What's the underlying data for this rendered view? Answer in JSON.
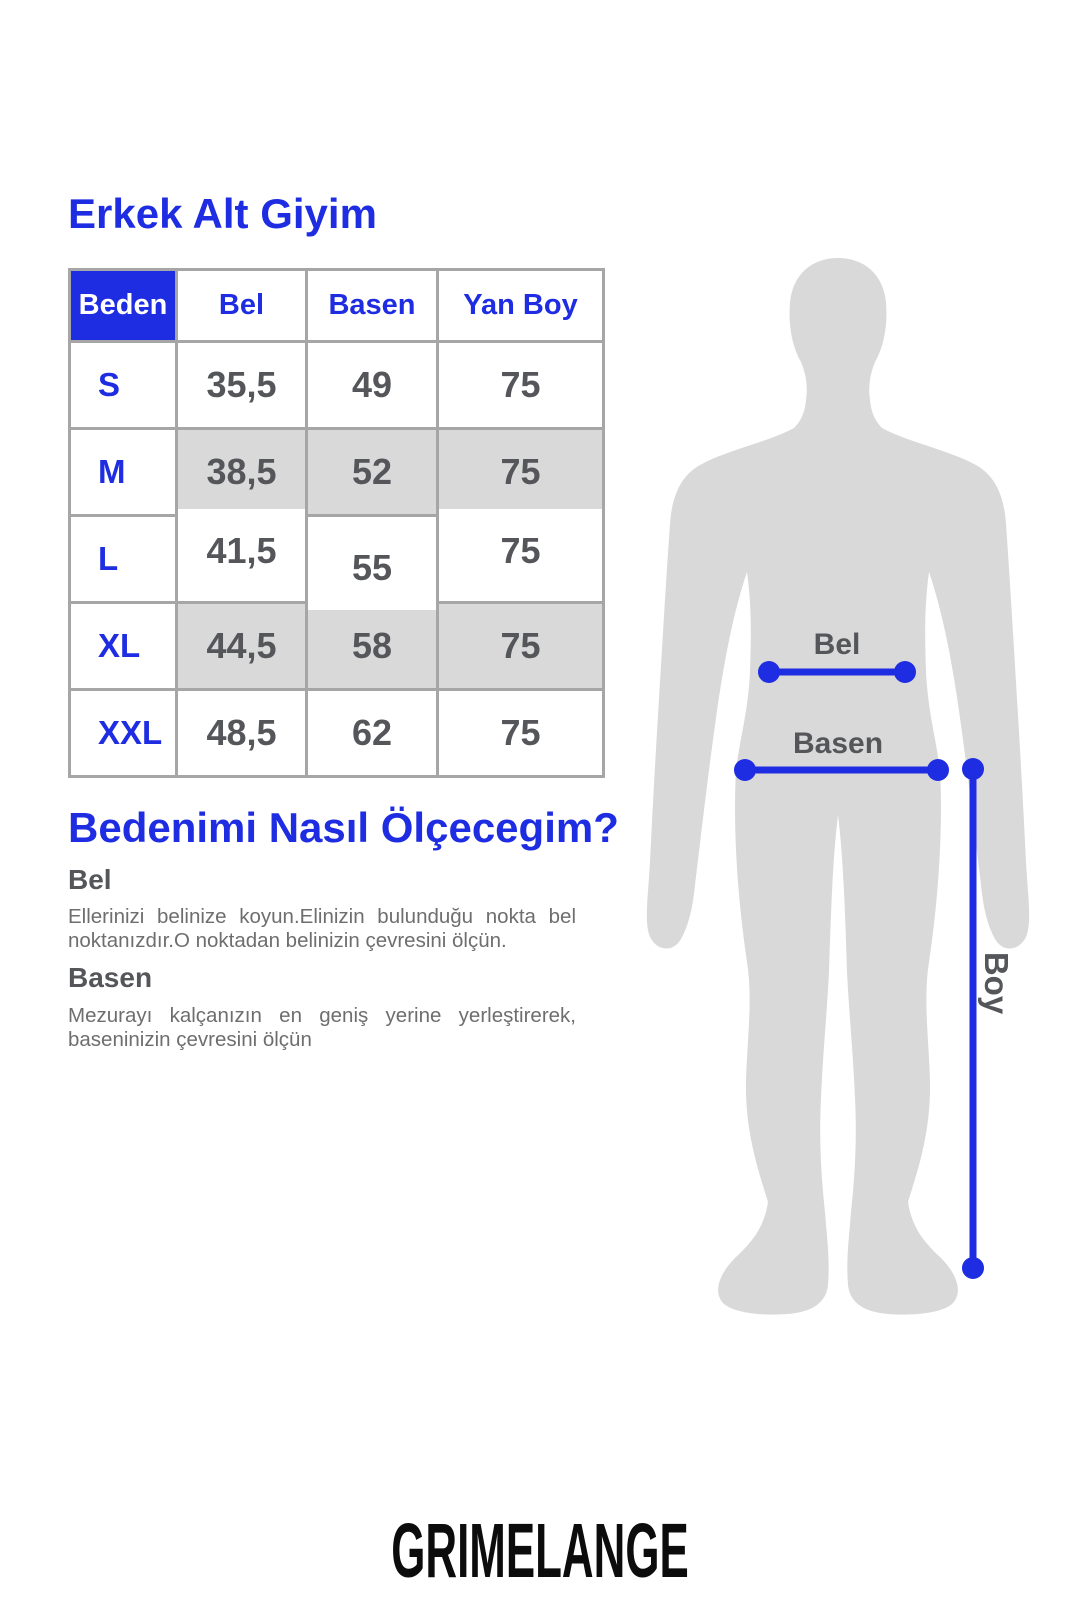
{
  "page": {
    "title": "Erkek Alt Giyim",
    "brand": "GRIMELANGE"
  },
  "size_table": {
    "headers": [
      "Beden",
      "Bel",
      "Basen",
      "Yan Boy"
    ],
    "rows": [
      {
        "size": "S",
        "bel": "35,5",
        "basen": "49",
        "yan_boy": "75"
      },
      {
        "size": "M",
        "bel": "38,5",
        "basen": "52",
        "yan_boy": "75"
      },
      {
        "size": "L",
        "bel": "41,5",
        "basen": "55",
        "yan_boy": "75"
      },
      {
        "size": "XL",
        "bel": "44,5",
        "basen": "58",
        "yan_boy": "75"
      },
      {
        "size": "XXL",
        "bel": "48,5",
        "basen": "62",
        "yan_boy": "75"
      }
    ]
  },
  "measure_guide": {
    "heading": "Bedenimi Nasıl Ölçecegim?",
    "sections": [
      {
        "label": "Bel",
        "text": "Ellerinizi belinize koyun.Elinizin bulunduğu nokta bel noktanızdır.O noktadan belinizin çevresini ölçün."
      },
      {
        "label": "Basen",
        "text": "Mezurayı kalçanızın en geniş yerine yerleştirerek, baseninizin çevresini ölçün"
      }
    ]
  },
  "figure": {
    "labels": {
      "bel": "Bel",
      "basen": "Basen",
      "boy": "Boy"
    }
  },
  "colors": {
    "accent_blue": "#1e2ce2",
    "table_text_dark": "#55565a",
    "body_text_gray": "#6e6e6e",
    "row_shade_gray": "#d9d9d9",
    "silhouette_gray": "#d9d9d9",
    "border_gray": "#a6a6a6"
  }
}
